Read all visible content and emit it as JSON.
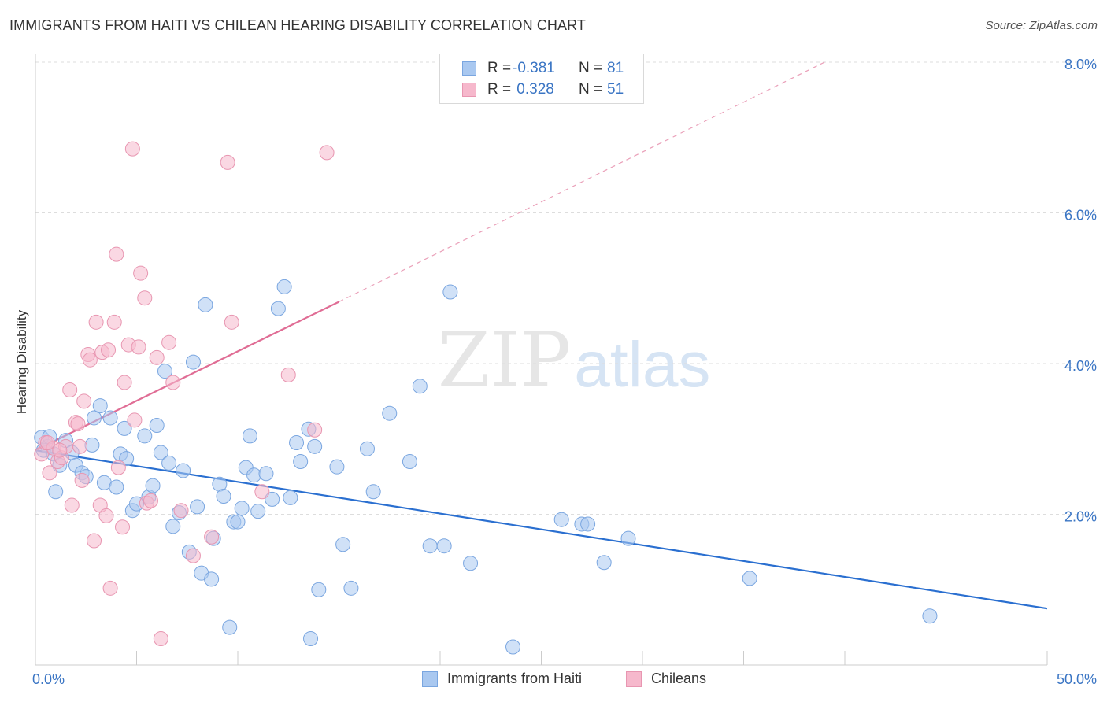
{
  "title": "IMMIGRANTS FROM HAITI VS CHILEAN HEARING DISABILITY CORRELATION CHART",
  "source": "Source: ZipAtlas.com",
  "watermark": {
    "part1": "ZIP",
    "part2": "atlas"
  },
  "legend_top": {
    "rows": [
      {
        "r_label": "R =",
        "r_value": "-0.381",
        "n_label": "N =",
        "n_value": "81"
      },
      {
        "r_label": "R =",
        "r_value": " 0.328",
        "n_label": "N =",
        "n_value": "51"
      }
    ]
  },
  "legend_bottom": [
    {
      "label": "Immigrants from Haiti"
    },
    {
      "label": "Chileans"
    }
  ],
  "colors": {
    "haiti_fill": "#a9c8f0",
    "haiti_stroke": "#7aa6e0",
    "haiti_line": "#2a6fd0",
    "chile_fill": "#f6b8cc",
    "chile_stroke": "#e896b1",
    "chile_line": "#e06d95",
    "grid": "#dddddd",
    "tick_text": "#3a75c4"
  },
  "chart_data": {
    "type": "scatter",
    "title": "IMMIGRANTS FROM HAITI VS CHILEAN HEARING DISABILITY CORRELATION CHART",
    "xlabel": "",
    "ylabel": "Hearing Disability",
    "xlim": [
      0,
      50
    ],
    "ylim": [
      0,
      8
    ],
    "x_tick_labels": [
      "0.0%",
      "50.0%"
    ],
    "y_ticks": [
      2,
      4,
      6,
      8
    ],
    "y_tick_labels": [
      "2.0%",
      "4.0%",
      "6.0%",
      "8.0%"
    ],
    "grid": "horizontal dashed",
    "legend_position": "top-center",
    "series": [
      {
        "name": "Immigrants from Haiti",
        "points": [
          [
            0.3,
            3.02
          ],
          [
            0.6,
            2.9
          ],
          [
            0.4,
            2.85
          ],
          [
            0.9,
            2.8
          ],
          [
            0.7,
            3.03
          ],
          [
            1.0,
            2.3
          ],
          [
            1.2,
            2.65
          ],
          [
            1.5,
            2.98
          ],
          [
            1.8,
            2.82
          ],
          [
            2.0,
            2.65
          ],
          [
            2.3,
            2.55
          ],
          [
            2.5,
            2.5
          ],
          [
            2.8,
            2.92
          ],
          [
            2.9,
            3.28
          ],
          [
            3.2,
            3.44
          ],
          [
            3.4,
            2.42
          ],
          [
            3.7,
            3.28
          ],
          [
            4.0,
            2.36
          ],
          [
            4.2,
            2.8
          ],
          [
            4.4,
            3.14
          ],
          [
            4.5,
            2.74
          ],
          [
            4.8,
            2.05
          ],
          [
            5.0,
            2.14
          ],
          [
            5.4,
            3.04
          ],
          [
            5.6,
            2.23
          ],
          [
            5.8,
            2.38
          ],
          [
            6.0,
            3.18
          ],
          [
            6.2,
            2.82
          ],
          [
            6.4,
            3.9
          ],
          [
            6.6,
            2.68
          ],
          [
            6.8,
            1.84
          ],
          [
            7.1,
            2.02
          ],
          [
            7.3,
            2.58
          ],
          [
            7.6,
            1.5
          ],
          [
            7.8,
            4.02
          ],
          [
            8.0,
            2.1
          ],
          [
            8.2,
            1.22
          ],
          [
            8.4,
            4.78
          ],
          [
            8.7,
            1.14
          ],
          [
            8.8,
            1.68
          ],
          [
            9.1,
            2.4
          ],
          [
            9.3,
            2.24
          ],
          [
            9.6,
            0.5
          ],
          [
            9.8,
            1.9
          ],
          [
            10.0,
            1.9
          ],
          [
            10.2,
            2.08
          ],
          [
            10.4,
            2.62
          ],
          [
            10.6,
            3.04
          ],
          [
            10.8,
            2.52
          ],
          [
            11.0,
            2.04
          ],
          [
            11.4,
            2.54
          ],
          [
            11.7,
            2.2
          ],
          [
            12.0,
            4.73
          ],
          [
            12.3,
            5.02
          ],
          [
            12.6,
            2.22
          ],
          [
            12.9,
            2.95
          ],
          [
            13.1,
            2.7
          ],
          [
            13.5,
            3.13
          ],
          [
            13.8,
            2.9
          ],
          [
            13.6,
            0.35
          ],
          [
            14.0,
            1.0
          ],
          [
            14.9,
            2.63
          ],
          [
            15.2,
            1.6
          ],
          [
            15.6,
            1.02
          ],
          [
            16.4,
            2.87
          ],
          [
            16.7,
            2.3
          ],
          [
            17.5,
            3.34
          ],
          [
            18.5,
            2.7
          ],
          [
            19.0,
            3.7
          ],
          [
            19.5,
            1.58
          ],
          [
            20.2,
            1.58
          ],
          [
            20.5,
            4.95
          ],
          [
            21.5,
            1.35
          ],
          [
            23.6,
            0.24
          ],
          [
            26.0,
            1.93
          ],
          [
            27.0,
            1.87
          ],
          [
            27.3,
            1.87
          ],
          [
            28.1,
            1.36
          ],
          [
            29.3,
            1.68
          ],
          [
            35.3,
            1.15
          ],
          [
            44.2,
            0.65
          ]
        ],
        "trend": {
          "x": [
            0,
            50
          ],
          "y": [
            2.85,
            0.75
          ]
        }
      },
      {
        "name": "Chileans",
        "points": [
          [
            0.3,
            2.8
          ],
          [
            0.5,
            2.95
          ],
          [
            0.7,
            2.55
          ],
          [
            0.9,
            2.88
          ],
          [
            1.1,
            2.7
          ],
          [
            1.3,
            2.75
          ],
          [
            1.5,
            2.9
          ],
          [
            1.7,
            3.65
          ],
          [
            1.8,
            2.12
          ],
          [
            2.0,
            3.22
          ],
          [
            2.1,
            3.2
          ],
          [
            2.2,
            2.9
          ],
          [
            2.3,
            2.45
          ],
          [
            2.4,
            3.5
          ],
          [
            2.6,
            4.12
          ],
          [
            2.7,
            4.05
          ],
          [
            2.9,
            1.65
          ],
          [
            3.0,
            4.55
          ],
          [
            3.2,
            2.12
          ],
          [
            3.3,
            4.15
          ],
          [
            3.5,
            1.98
          ],
          [
            3.6,
            4.18
          ],
          [
            3.7,
            1.02
          ],
          [
            3.9,
            4.55
          ],
          [
            4.0,
            5.45
          ],
          [
            4.1,
            2.62
          ],
          [
            4.3,
            1.83
          ],
          [
            4.4,
            3.75
          ],
          [
            4.6,
            4.25
          ],
          [
            4.8,
            6.85
          ],
          [
            4.9,
            3.25
          ],
          [
            5.1,
            4.22
          ],
          [
            5.2,
            5.2
          ],
          [
            5.4,
            4.87
          ],
          [
            5.5,
            2.15
          ],
          [
            5.7,
            2.18
          ],
          [
            6.0,
            4.08
          ],
          [
            6.2,
            0.35
          ],
          [
            6.6,
            4.28
          ],
          [
            6.8,
            3.75
          ],
          [
            7.2,
            2.05
          ],
          [
            7.8,
            1.45
          ],
          [
            8.7,
            1.7
          ],
          [
            9.5,
            6.67
          ],
          [
            9.7,
            4.55
          ],
          [
            11.2,
            2.3
          ],
          [
            12.5,
            3.85
          ],
          [
            13.8,
            3.12
          ],
          [
            14.4,
            6.8
          ],
          [
            0.6,
            2.95
          ],
          [
            1.2,
            2.85
          ]
        ],
        "trend": {
          "x": [
            0,
            15
          ],
          "y": [
            2.85,
            4.82
          ]
        },
        "trend_extension": {
          "x": [
            15,
            39
          ],
          "y": [
            4.82,
            8.0
          ]
        }
      }
    ]
  }
}
